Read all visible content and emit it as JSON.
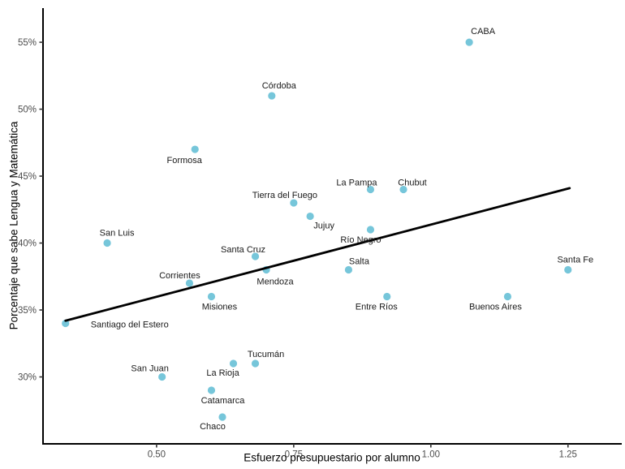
{
  "chart_data": {
    "type": "scatter",
    "title": "",
    "xlabel": "Esfuerzo presupuestario por alumno",
    "ylabel": "Porcentaje que sabe Lengua y Matemática",
    "xlim": [
      0.293,
      1.348
    ],
    "ylim": [
      25.0,
      57.55
    ],
    "grid": false,
    "legend": "none",
    "x_ticks": {
      "values": [
        0.5,
        0.75,
        1.0,
        1.25
      ],
      "labels": [
        "0.50",
        "0.75",
        "1.00",
        "1.25"
      ]
    },
    "y_ticks": {
      "values": [
        30,
        35,
        40,
        45,
        50,
        55
      ],
      "labels": [
        "30%",
        "35%",
        "40%",
        "45%",
        "50%",
        "55%"
      ]
    },
    "styles": {
      "background": "#FFFFFF",
      "point_color": "#76C6DA",
      "trend_color": "#000000",
      "axis_color": "#000000",
      "tick_label_color": "#4D4D4D",
      "point_label_color": "#1A1A1A"
    },
    "trend_line": {
      "x1": 0.334,
      "y1": 34.2,
      "x2": 1.253,
      "y2": 44.1
    },
    "points": [
      {
        "name": "CABA",
        "x": 1.07,
        "y": 55,
        "label_offset": [
          17,
          -14
        ]
      },
      {
        "name": "Córdoba",
        "x": 0.71,
        "y": 51,
        "label_offset": [
          9,
          -13
        ]
      },
      {
        "name": "Formosa",
        "x": 0.57,
        "y": 47,
        "label_offset": [
          -13,
          13
        ]
      },
      {
        "name": "La Pampa",
        "x": 0.89,
        "y": 44,
        "label_offset": [
          -17,
          -9
        ]
      },
      {
        "name": "Chubut",
        "x": 0.95,
        "y": 44,
        "label_offset": [
          11,
          -9
        ]
      },
      {
        "name": "Tierra del Fuego",
        "x": 0.75,
        "y": 43,
        "label_offset": [
          -11,
          -10
        ]
      },
      {
        "name": "Jujuy",
        "x": 0.78,
        "y": 42,
        "label_offset": [
          17,
          11
        ]
      },
      {
        "name": "Río Negro",
        "x": 0.89,
        "y": 41,
        "label_offset": [
          -12,
          12
        ]
      },
      {
        "name": "San Luis",
        "x": 0.41,
        "y": 40,
        "label_offset": [
          12,
          -13
        ]
      },
      {
        "name": "Santa Cruz",
        "x": 0.68,
        "y": 39,
        "label_offset": [
          -15,
          -9
        ]
      },
      {
        "name": "Mendoza",
        "x": 0.7,
        "y": 38,
        "label_offset": [
          11,
          14
        ]
      },
      {
        "name": "Salta",
        "x": 0.85,
        "y": 38,
        "label_offset": [
          13,
          -11
        ]
      },
      {
        "name": "Santa Fe",
        "x": 1.25,
        "y": 38,
        "label_offset": [
          9,
          -13
        ]
      },
      {
        "name": "Corrientes",
        "x": 0.56,
        "y": 37,
        "label_offset": [
          -12,
          -10
        ]
      },
      {
        "name": "Misiones",
        "x": 0.6,
        "y": 36,
        "label_offset": [
          10,
          12
        ]
      },
      {
        "name": "Entre Ríos",
        "x": 0.92,
        "y": 36,
        "label_offset": [
          -13,
          12
        ]
      },
      {
        "name": "Buenos Aires",
        "x": 1.14,
        "y": 36,
        "label_offset": [
          -15,
          12
        ]
      },
      {
        "name": "Santiago del Estero",
        "x": 0.334,
        "y": 34,
        "label_offset": [
          79,
          1
        ]
      },
      {
        "name": "Tucumán",
        "x": 0.68,
        "y": 31,
        "label_offset": [
          13,
          -12
        ]
      },
      {
        "name": "La Rioja",
        "x": 0.64,
        "y": 31,
        "label_offset": [
          -13,
          11
        ]
      },
      {
        "name": "San Juan",
        "x": 0.51,
        "y": 30,
        "label_offset": [
          -15,
          -11
        ]
      },
      {
        "name": "Catamarca",
        "x": 0.6,
        "y": 29,
        "label_offset": [
          14,
          12
        ]
      },
      {
        "name": "Chaco",
        "x": 0.62,
        "y": 27,
        "label_offset": [
          -12,
          11
        ]
      }
    ]
  }
}
